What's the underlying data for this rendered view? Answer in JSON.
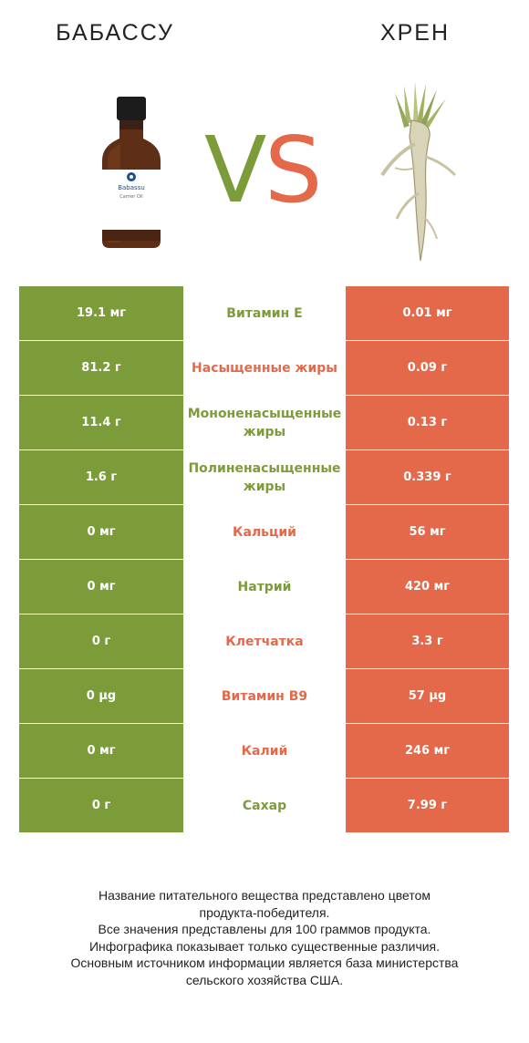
{
  "header": {
    "left_title": "БАБАССУ",
    "right_title": "ХРЕН",
    "vs_v": "V",
    "vs_s": "S",
    "left_product_image": "babassu-oil-bottle",
    "right_product_image": "horseradish-root",
    "bottle_label_brand": "Babassu",
    "bottle_label_sub": "Carrier Oil"
  },
  "colors": {
    "left_winner": "#7c9c3a",
    "right_winner": "#e4694a"
  },
  "rows": [
    {
      "left": "19.1 мг",
      "nutrient": "Витамин E",
      "right": "0.01 мг",
      "winner": "left"
    },
    {
      "left": "81.2 г",
      "nutrient": "Насыщенные жиры",
      "right": "0.09 г",
      "winner": "right"
    },
    {
      "left": "11.4 г",
      "nutrient": "Мононенасыщенные жиры",
      "right": "0.13 г",
      "winner": "left"
    },
    {
      "left": "1.6 г",
      "nutrient": "Полиненасыщенные жиры",
      "right": "0.339 г",
      "winner": "left"
    },
    {
      "left": "0 мг",
      "nutrient": "Кальций",
      "right": "56 мг",
      "winner": "right"
    },
    {
      "left": "0 мг",
      "nutrient": "Натрий",
      "right": "420 мг",
      "winner": "left"
    },
    {
      "left": "0 г",
      "nutrient": "Клетчатка",
      "right": "3.3 г",
      "winner": "right"
    },
    {
      "left": "0 µg",
      "nutrient": "Витамин B9",
      "right": "57 µg",
      "winner": "right"
    },
    {
      "left": "0 мг",
      "nutrient": "Калий",
      "right": "246 мг",
      "winner": "right"
    },
    {
      "left": "0 г",
      "nutrient": "Сахар",
      "right": "7.99 г",
      "winner": "left"
    }
  ],
  "footer": {
    "lines": [
      "Название питательного вещества представлено цветом",
      "продукта-победителя.",
      "Все значения представлены для 100 граммов продукта.",
      "Инфографика показывает только существенные различия.",
      "Основным источником информации является база министерства",
      "сельского хозяйства США."
    ]
  }
}
